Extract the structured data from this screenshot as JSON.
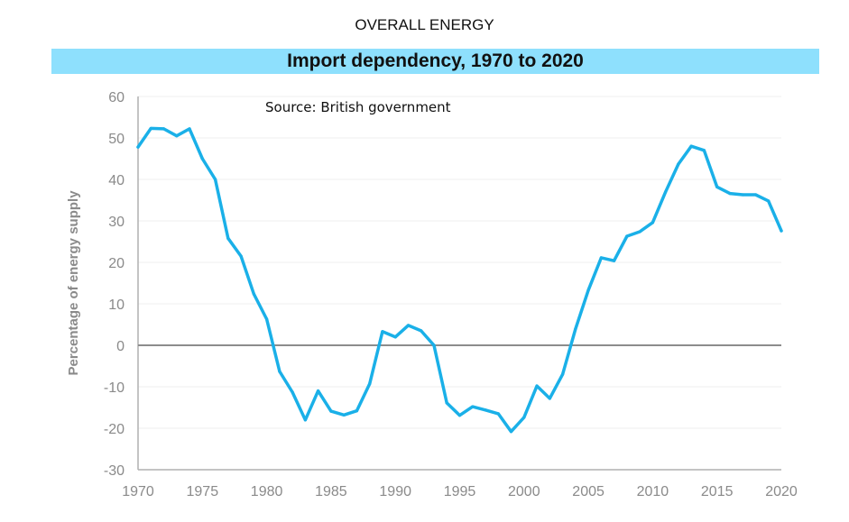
{
  "header": {
    "suptitle": "OVERALL ENERGY",
    "banner_title": "Import dependency, 1970 to 2020",
    "banner_color": "#8ee0fd"
  },
  "chart_data": {
    "type": "line",
    "title": "Import dependency, 1970 to 2020",
    "xlabel": "",
    "ylabel": "Percentage of energy supply",
    "annotation": "Source: British government",
    "xlim": [
      1970,
      2020
    ],
    "ylim": [
      -30,
      60
    ],
    "xticks": [
      1970,
      1975,
      1980,
      1985,
      1990,
      1995,
      2000,
      2005,
      2010,
      2015,
      2020
    ],
    "yticks": [
      60,
      50,
      40,
      30,
      20,
      10,
      0,
      -10,
      -20,
      -30
    ],
    "grid": true,
    "line_color": "#1ab0e8",
    "x": [
      1970,
      1971,
      1972,
      1973,
      1974,
      1975,
      1976,
      1977,
      1978,
      1979,
      1980,
      1981,
      1982,
      1983,
      1984,
      1985,
      1986,
      1987,
      1988,
      1989,
      1990,
      1991,
      1992,
      1993,
      1994,
      1995,
      1996,
      1997,
      1998,
      1999,
      2000,
      2001,
      2002,
      2003,
      2004,
      2005,
      2006,
      2007,
      2008,
      2009,
      2010,
      2011,
      2012,
      2013,
      2014,
      2015,
      2016,
      2017,
      2018,
      2019,
      2020
    ],
    "series": [
      {
        "name": "Import dependency",
        "values": [
          47.8,
          52.3,
          52.2,
          50.5,
          52.2,
          45,
          40,
          25.8,
          21.5,
          12.4,
          6.3,
          -6.3,
          -11.3,
          -18,
          -11,
          -15.9,
          -16.8,
          -15.8,
          -9.3,
          3.3,
          2.0,
          4.8,
          3.5,
          0,
          -13.9,
          -16.9,
          -14.8,
          -15.6,
          -16.5,
          -20.8,
          -17.4,
          -9.8,
          -12.8,
          -7,
          3.9,
          13.3,
          21.1,
          20.4,
          26.3,
          27.4,
          29.6,
          37,
          43.7,
          48,
          47,
          38.2,
          36.6,
          36.3,
          36.3,
          34.8,
          27.6
        ]
      }
    ]
  }
}
